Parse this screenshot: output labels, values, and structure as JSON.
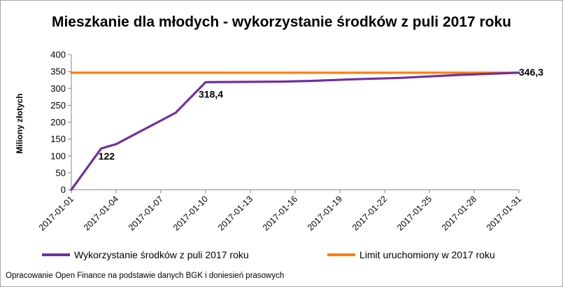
{
  "chart_data": {
    "type": "line",
    "title": "Mieszkanie dla młodych - wykorzystanie środków z puli 2017 roku",
    "ylabel": "Miliony złotych",
    "xlabel": "",
    "ylim": [
      0,
      400
    ],
    "yticks": [
      "0",
      "50",
      "100",
      "150",
      "200",
      "250",
      "300",
      "350",
      "400"
    ],
    "xticks": [
      "2017-01-01",
      "2017-01-04",
      "2017-01-07",
      "2017-01-10",
      "2017-01-13",
      "2017-01-16",
      "2017-01-19",
      "2017-01-22",
      "2017-01-25",
      "2017-01-28",
      "2017-01-31"
    ],
    "grid": false,
    "legend_position": "bottom",
    "series": [
      {
        "name": "Wykorzystanie środków z puli 2017 roku",
        "color": "#7030a0",
        "x": [
          "2017-01-01",
          "2017-01-03",
          "2017-01-04",
          "2017-01-08",
          "2017-01-10",
          "2017-01-15",
          "2017-01-17",
          "2017-01-20",
          "2017-01-23",
          "2017-01-27",
          "2017-01-31"
        ],
        "y": [
          0,
          122,
          135,
          228,
          318.4,
          320,
          322,
          327,
          331,
          340,
          346.3
        ]
      },
      {
        "name": "Limit uruchomiony w 2017 roku",
        "color": "#ff7f0e",
        "x": [
          "2017-01-01",
          "2017-01-31"
        ],
        "y": [
          346.3,
          346.3
        ]
      }
    ],
    "data_labels": [
      {
        "x": "2017-01-03",
        "y": 122,
        "text": "122"
      },
      {
        "x": "2017-01-10",
        "y": 318.4,
        "text": "318,4"
      },
      {
        "x": "2017-01-31",
        "y": 346.3,
        "text": "346,3"
      }
    ]
  },
  "source_note": "Opracowanie Open Finance  na podstawie danych BGK i doniesień prasowych"
}
